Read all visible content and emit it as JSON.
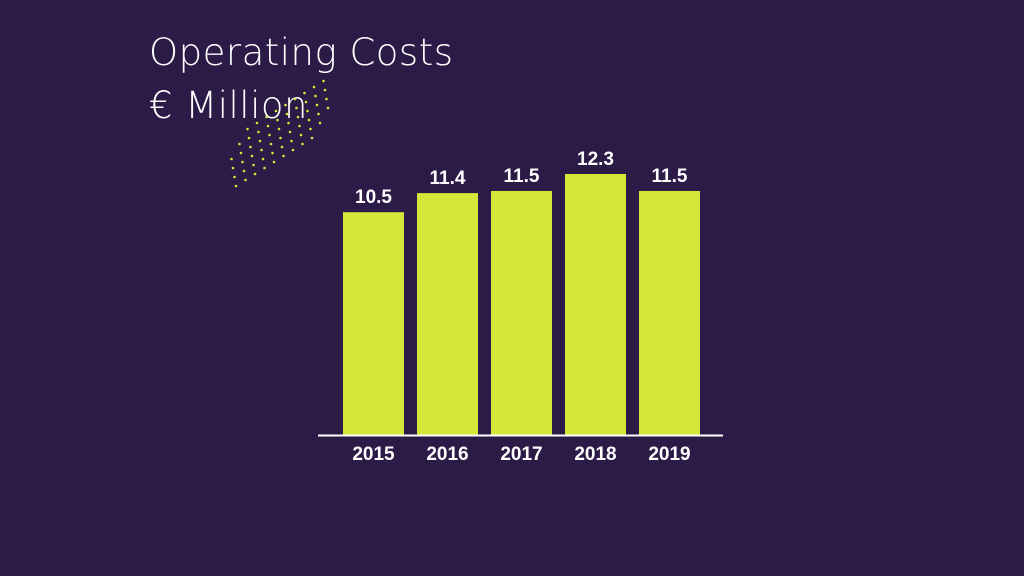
{
  "colors": {
    "background": "#2d1b47",
    "bar": "#d4e839",
    "text": "#ffffff",
    "axis": "#ffffff",
    "decoration_dots": "#d4e839"
  },
  "decoration": {
    "icon": "dot-pattern-icon"
  },
  "chart_data": {
    "type": "bar",
    "title": "Operating Costs",
    "subtitle": "€ Million",
    "categories": [
      "2015",
      "2016",
      "2017",
      "2018",
      "2019"
    ],
    "values": [
      10.5,
      11.4,
      11.5,
      12.3,
      11.5
    ],
    "value_labels": [
      "10.5",
      "11.4",
      "11.5",
      "12.3",
      "11.5"
    ],
    "ylim": [
      0,
      12.3
    ],
    "grid": false,
    "legend": "none",
    "xlabel": "",
    "ylabel": ""
  }
}
